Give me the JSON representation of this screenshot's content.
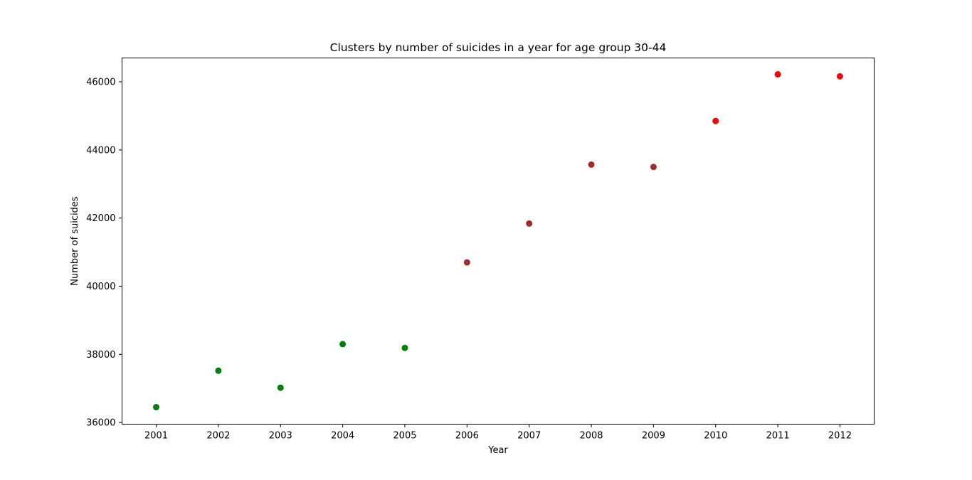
{
  "chart_data": {
    "type": "scatter",
    "title": "Clusters by number of suicides in a year for age group 30-44",
    "xlabel": "Year",
    "ylabel": "Number of suicides",
    "x": [
      2001,
      2002,
      2003,
      2004,
      2005,
      2006,
      2007,
      2008,
      2009,
      2010,
      2011,
      2012
    ],
    "y": [
      36450,
      37520,
      37020,
      38300,
      38190,
      40700,
      41840,
      43570,
      43500,
      44850,
      46220,
      46160
    ],
    "point_colors": [
      "#008000",
      "#008000",
      "#008000",
      "#008000",
      "#008000",
      "#a52a2a",
      "#a52a2a",
      "#a52a2a",
      "#a52a2a",
      "#ff0000",
      "#ff0000",
      "#ff0000"
    ],
    "xlim": [
      2000.45,
      2012.55
    ],
    "ylim": [
      35950,
      46700
    ],
    "x_ticks": [
      2001,
      2002,
      2003,
      2004,
      2005,
      2006,
      2007,
      2008,
      2009,
      2010,
      2011,
      2012
    ],
    "x_tick_labels": [
      "2001",
      "2002",
      "2003",
      "2004",
      "2005",
      "2006",
      "2007",
      "2008",
      "2009",
      "2010",
      "2011",
      "2012"
    ],
    "y_ticks": [
      36000,
      38000,
      40000,
      42000,
      44000,
      46000
    ],
    "y_tick_labels": [
      "36000",
      "38000",
      "40000",
      "42000",
      "44000",
      "46000"
    ],
    "grid": false,
    "legend": "none"
  }
}
